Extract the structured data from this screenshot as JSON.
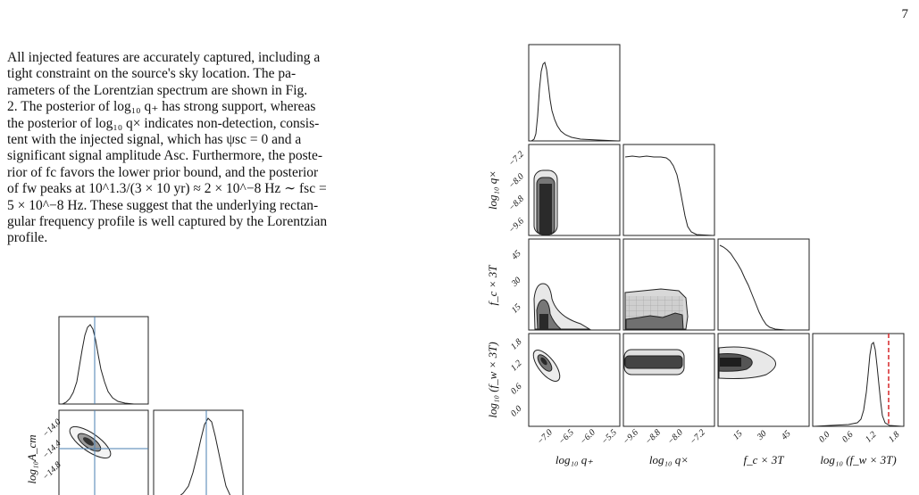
{
  "page_number": "7",
  "paragraph": {
    "lines": [
      "All injected features are accurately captured, including a",
      "tight constraint on the source's sky location. The pa-",
      "rameters of the Lorentzian spectrum are shown in Fig.",
      "2. The posterior of log₁₀ q₊ has strong support, whereas",
      "the posterior of log₁₀ q× indicates non-detection, consis-",
      "tent with the injected signal, which has ψsc = 0 and a",
      "significant signal amplitude Asc. Furthermore, the poste-",
      "rior of fc favors the lower prior bound, and the posterior",
      "of fw peaks at 10^1.3/(3 × 10 yr) ≈ 2 × 10^−8 Hz ∼ fsc =",
      "5 × 10^−8 Hz. These suggest that the underlying rectan-",
      "gular frequency profile is well captured by the Lorentzian",
      "profile."
    ]
  },
  "small_corner": {
    "ylabel": "log₁₀A_cm",
    "yticks": [
      "−14.0",
      "−14.4",
      "−14.8"
    ]
  },
  "corner_plot": {
    "x_labels": [
      "log₁₀ q₊",
      "log₁₀ q×",
      "f_c × 3T",
      "log₁₀ (f_w × 3T)"
    ],
    "y_labels": [
      "log₁₀ q×",
      "f_c × 3T",
      "log₁₀ (f_w × 3T)"
    ],
    "x_ticks": [
      [
        "−7.0",
        "−6.5",
        "−6.0",
        "−5.5"
      ],
      [
        "−9.6",
        "−8.8",
        "−8.0",
        "−7.2"
      ],
      [
        "15",
        "30",
        "45"
      ],
      [
        "0.0",
        "0.6",
        "1.2",
        "1.8"
      ]
    ],
    "y_ticks": [
      [
        "−7.2",
        "−8.0",
        "−8.8",
        "−9.6"
      ],
      [
        "45",
        "30",
        "15"
      ],
      [
        "1.8",
        "1.2",
        "0.6",
        "0.0"
      ]
    ],
    "injection_color": "#d62728"
  },
  "chart_data": {
    "type": "corner",
    "parameters": [
      "log₁₀ q₊",
      "log₁₀ q×",
      "f_c × 3T",
      "log₁₀ (f_w × 3T)"
    ],
    "ranges": [
      [
        -7.4,
        -5.3
      ],
      [
        -10.0,
        -6.8
      ],
      [
        0,
        55
      ],
      [
        -0.3,
        2.0
      ]
    ],
    "marginal_peaks": [
      -7.05,
      null,
      0,
      1.25
    ],
    "injected_log10_fw_3T": 1.65
  }
}
